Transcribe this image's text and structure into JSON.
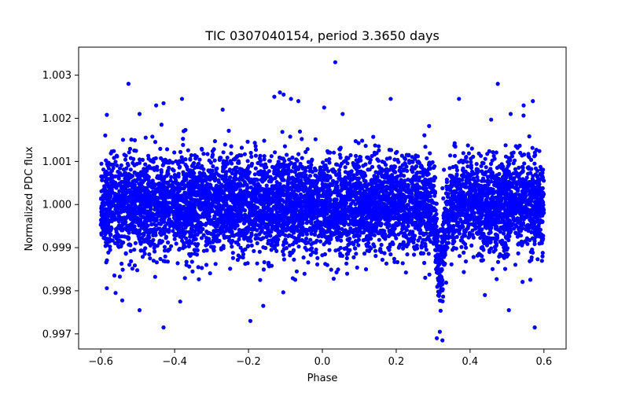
{
  "chart_data": {
    "type": "scatter",
    "title": "TIC 0307040154, period 3.3650 days",
    "xlabel": "Phase",
    "ylabel": "Normalized PDC flux",
    "xlim": [
      -0.66,
      0.66
    ],
    "ylim": [
      0.99665,
      1.00365
    ],
    "x_ticks": [
      -0.6,
      -0.4,
      -0.2,
      0.0,
      0.2,
      0.4,
      0.6
    ],
    "x_tick_labels": [
      "−0.6",
      "−0.4",
      "−0.2",
      "0.0",
      "0.2",
      "0.4",
      "0.6"
    ],
    "y_ticks": [
      0.997,
      0.998,
      0.999,
      1.0,
      1.001,
      1.002,
      1.003
    ],
    "y_tick_labels": [
      "0.997",
      "0.998",
      "0.999",
      "1.000",
      "1.001",
      "1.002",
      "1.003"
    ],
    "marker_color": "#0000ff",
    "grid": false,
    "series": [
      {
        "name": "PDC flux",
        "description": "dense phase-folded light curve, baseline ~1.000 with scatter ~0.0005, spanning phase -0.6 to 0.6, transit dip centered near phase 0.32 reaching ~0.9970",
        "baseline": 1.0,
        "scatter_sigma": 0.00055,
        "phase_range": [
          -0.6,
          0.6
        ],
        "transit_center": 0.32,
        "transit_half_width": 0.018,
        "transit_depth": 0.0018,
        "outliers": [
          [
            0.035,
            1.0033
          ],
          [
            -0.525,
            1.0028
          ],
          [
            0.475,
            1.0028
          ],
          [
            -0.115,
            1.0026
          ],
          [
            -0.105,
            1.00255
          ],
          [
            -0.13,
            1.0025
          ],
          [
            -0.085,
            1.00245
          ],
          [
            -0.065,
            1.0024
          ],
          [
            0.185,
            1.00245
          ],
          [
            0.37,
            1.00245
          ],
          [
            -0.38,
            1.00245
          ],
          [
            0.57,
            1.0024
          ],
          [
            -0.43,
            1.00235
          ],
          [
            0.545,
            1.0023
          ],
          [
            -0.45,
            1.0023
          ],
          [
            -0.27,
            1.0022
          ],
          [
            0.005,
            1.00225
          ],
          [
            0.055,
            1.0021
          ],
          [
            -0.495,
            1.0021
          ],
          [
            0.51,
            1.0021
          ],
          [
            -0.43,
            0.99715
          ],
          [
            0.575,
            0.99715
          ],
          [
            -0.195,
            0.9973
          ],
          [
            -0.495,
            0.99755
          ],
          [
            0.505,
            0.99755
          ],
          [
            -0.385,
            0.99775
          ],
          [
            -0.16,
            0.99765
          ],
          [
            0.44,
            0.9979
          ],
          [
            -0.56,
            0.99795
          ],
          [
            0.31,
            0.9969
          ],
          [
            0.325,
            0.99685
          ],
          [
            0.318,
            0.99705
          ]
        ]
      }
    ]
  }
}
